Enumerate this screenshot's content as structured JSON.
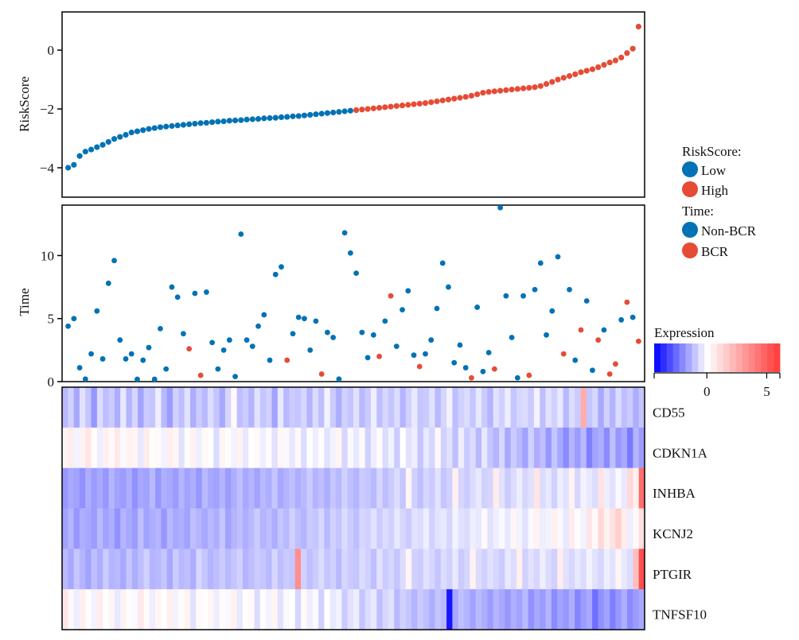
{
  "chart_data": {
    "type": "scatter",
    "panels": {
      "risk": {
        "ylabel": "RiskScore",
        "ylim": [
          -5,
          1.3
        ],
        "yticks": [
          0,
          -2,
          -4
        ]
      },
      "time": {
        "ylabel": "Time",
        "ylim": [
          0,
          14
        ],
        "yticks": [
          0,
          5,
          10
        ]
      },
      "heatmap": {
        "genes": [
          "CD55",
          "CDKN1A",
          "INHBA",
          "KCNJ2",
          "PTGIR",
          "TNFSF10"
        ]
      }
    },
    "legend": {
      "risk_title": "RiskScore:",
      "risk_low": "Low",
      "risk_high": "High",
      "time_title": "Time:",
      "time_nonbcr": "Non-BCR",
      "time_bcr": "BCR",
      "expression_title": "Expression",
      "expression_ticks": [
        0,
        5
      ],
      "expression_range": [
        -4.4,
        6.1
      ],
      "placement": "right"
    },
    "colors": {
      "low": "#0072b5",
      "high": "#e64b35",
      "heat_low": "#0000ff",
      "heat_mid": "#ffffff",
      "heat_high": "#ff3a3a"
    },
    "risk_score": [
      -4.0,
      -3.9,
      -3.6,
      -3.45,
      -3.38,
      -3.3,
      -3.22,
      -3.12,
      -3.02,
      -2.95,
      -2.88,
      -2.8,
      -2.76,
      -2.72,
      -2.68,
      -2.65,
      -2.62,
      -2.6,
      -2.58,
      -2.56,
      -2.54,
      -2.52,
      -2.5,
      -2.48,
      -2.47,
      -2.45,
      -2.43,
      -2.42,
      -2.4,
      -2.39,
      -2.38,
      -2.36,
      -2.35,
      -2.34,
      -2.32,
      -2.31,
      -2.3,
      -2.28,
      -2.27,
      -2.25,
      -2.24,
      -2.22,
      -2.2,
      -2.18,
      -2.16,
      -2.14,
      -2.12,
      -2.1,
      -2.08,
      -2.06,
      -2.04,
      -2.02,
      -2.0,
      -1.98,
      -1.96,
      -1.94,
      -1.92,
      -1.9,
      -1.88,
      -1.86,
      -1.84,
      -1.82,
      -1.8,
      -1.77,
      -1.74,
      -1.71,
      -1.68,
      -1.65,
      -1.62,
      -1.59,
      -1.55,
      -1.5,
      -1.45,
      -1.42,
      -1.4,
      -1.38,
      -1.36,
      -1.34,
      -1.32,
      -1.3,
      -1.28,
      -1.26,
      -1.22,
      -1.15,
      -1.08,
      -1.0,
      -0.94,
      -0.88,
      -0.82,
      -0.75,
      -0.7,
      -0.65,
      -0.58,
      -0.5,
      -0.42,
      -0.35,
      -0.25,
      -0.1,
      0.05,
      0.8
    ],
    "risk_high": [
      0,
      0,
      0,
      0,
      0,
      0,
      0,
      0,
      0,
      0,
      0,
      0,
      0,
      0,
      0,
      0,
      0,
      0,
      0,
      0,
      0,
      0,
      0,
      0,
      0,
      0,
      0,
      0,
      0,
      0,
      0,
      0,
      0,
      0,
      0,
      0,
      0,
      0,
      0,
      0,
      0,
      0,
      0,
      0,
      0,
      0,
      0,
      0,
      0,
      0,
      1,
      1,
      1,
      1,
      1,
      1,
      1,
      1,
      1,
      1,
      1,
      1,
      1,
      1,
      1,
      1,
      1,
      1,
      1,
      1,
      1,
      1,
      1,
      1,
      1,
      1,
      1,
      1,
      1,
      1,
      1,
      1,
      1,
      1,
      1,
      1,
      1,
      1,
      1,
      1,
      1,
      1,
      1,
      1,
      1,
      1,
      1,
      1,
      1,
      1
    ],
    "time": [
      4.4,
      5.0,
      1.1,
      0.2,
      2.2,
      5.6,
      1.8,
      7.8,
      9.6,
      3.3,
      1.8,
      2.2,
      0.1,
      1.7,
      2.7,
      0.1,
      4.2,
      1.0,
      7.5,
      6.7,
      3.8,
      2.6,
      7.0,
      0.5,
      7.1,
      3.1,
      1.0,
      2.5,
      3.3,
      0.4,
      11.7,
      3.3,
      2.8,
      4.4,
      5.3,
      1.7,
      8.5,
      9.1,
      1.7,
      3.8,
      5.1,
      5.0,
      2.5,
      4.8,
      0.6,
      3.9,
      3.5,
      0.2,
      11.8,
      10.2,
      8.6,
      3.9,
      1.9,
      3.7,
      2.0,
      4.8,
      6.8,
      2.8,
      5.7,
      7.2,
      2.1,
      1.2,
      2.2,
      3.3,
      5.8,
      9.4,
      7.5,
      1.5,
      2.9,
      1.1,
      0.3,
      5.9,
      0.8,
      2.3,
      1.0,
      13.8,
      6.8,
      3.5,
      0.3,
      6.8,
      0.5,
      7.3,
      9.4,
      3.7,
      5.6,
      9.9,
      2.2,
      7.3,
      1.7,
      4.1,
      6.4,
      0.9,
      3.3,
      4.1,
      0.6,
      1.4,
      4.9,
      6.3,
      5.1,
      3.2
    ],
    "bcr_status": [
      0,
      0,
      0,
      0,
      0,
      0,
      0,
      0,
      0,
      0,
      0,
      0,
      0,
      0,
      0,
      0,
      0,
      0,
      0,
      0,
      0,
      1,
      0,
      1,
      0,
      0,
      0,
      0,
      0,
      0,
      0,
      0,
      0,
      0,
      0,
      0,
      0,
      0,
      1,
      0,
      0,
      0,
      0,
      0,
      1,
      0,
      0,
      0,
      0,
      0,
      0,
      0,
      0,
      0,
      1,
      0,
      1,
      0,
      0,
      0,
      0,
      1,
      0,
      0,
      0,
      0,
      0,
      0,
      0,
      0,
      1,
      0,
      0,
      0,
      1,
      0,
      0,
      0,
      0,
      0,
      1,
      0,
      0,
      0,
      0,
      0,
      1,
      0,
      0,
      1,
      0,
      0,
      1,
      0,
      1,
      1,
      0,
      1,
      0,
      1
    ],
    "expression": [
      [
        -1.2,
        -0.8,
        -1.5,
        -0.5,
        -1.0,
        -1.8,
        -0.6,
        -1.1,
        -0.9,
        -1.4,
        -0.4,
        -1.3,
        -0.7,
        -1.6,
        -0.9,
        -1.0,
        -0.3,
        -1.2,
        -1.7,
        -0.8,
        -1.1,
        -0.5,
        -1.4,
        -0.9,
        -1.2,
        -0.6,
        -1.0,
        -1.5,
        -0.7,
        0.2,
        -1.1,
        -0.9,
        -1.3,
        -0.5,
        -1.0,
        -0.8,
        -1.6,
        -0.4,
        -1.2,
        -0.9,
        -1.0,
        -0.7,
        -1.3,
        -0.6,
        -1.1,
        -0.2,
        -0.9,
        -1.4,
        -0.8,
        -1.0,
        -0.5,
        -1.2,
        -0.9,
        -0.3,
        -1.1,
        -0.7,
        -1.0,
        -0.6,
        -1.3,
        -0.8,
        -0.4,
        -1.0,
        -0.9,
        -0.5,
        -1.2,
        -0.7,
        -0.2,
        -1.1,
        -0.8,
        -0.6,
        -1.0,
        -0.4,
        -0.9,
        -1.3,
        -0.5,
        -0.8,
        -0.3,
        -1.0,
        -0.7,
        -0.6,
        -0.9,
        -0.2,
        -1.1,
        -0.5,
        -0.8,
        -0.4,
        -1.2,
        -0.6,
        -0.9,
        2.5,
        -1.0,
        -0.7,
        -1.5,
        -0.8,
        -1.3,
        -0.6,
        -1.1,
        -0.9,
        -1.4,
        -1.0
      ],
      [
        0.3,
        0.6,
        -0.2,
        0.4,
        0.8,
        0.1,
        -0.3,
        0.5,
        0.2,
        0.7,
        -0.1,
        0.4,
        0.3,
        -0.4,
        0.6,
        0.1,
        0.2,
        -0.2,
        0.5,
        0.3,
        -0.5,
        0.1,
        0.4,
        -0.3,
        0.2,
        0.0,
        -0.6,
        0.3,
        0.1,
        -0.2,
        0.4,
        -0.4,
        0.0,
        0.2,
        -0.3,
        0.1,
        -0.5,
        0.3,
        -0.1,
        -0.4,
        0.2,
        -0.6,
        0.0,
        -0.3,
        0.1,
        -0.5,
        -0.2,
        0.3,
        -0.7,
        -0.1,
        -0.4,
        0.2,
        -0.8,
        -0.3,
        0.1,
        -0.6,
        -0.2,
        -0.9,
        0.0,
        -0.5,
        -0.3,
        -1.0,
        -0.4,
        -0.7,
        0.2,
        -0.8,
        -0.5,
        -1.1,
        -0.3,
        -0.9,
        -0.6,
        -1.2,
        -0.4,
        -1.0,
        -1.3,
        -0.7,
        -1.5,
        -0.9,
        -1.2,
        -1.6,
        -0.8,
        -1.4,
        -1.1,
        -1.8,
        -1.0,
        -1.5,
        -2.0,
        -1.3,
        -1.7,
        -1.2,
        -2.2,
        -1.6,
        -1.4,
        -2.0,
        -1.1,
        -1.8,
        -1.5,
        -2.3,
        -1.3,
        -1.7
      ],
      [
        -1.8,
        -1.5,
        -1.6,
        -1.9,
        -1.4,
        -1.7,
        -1.5,
        -1.8,
        -1.3,
        -1.6,
        -1.7,
        -1.4,
        -1.9,
        -1.5,
        -1.6,
        -1.2,
        -1.8,
        -1.4,
        -1.5,
        -1.7,
        -1.3,
        -1.6,
        -1.4,
        -1.8,
        -1.2,
        -1.5,
        -1.6,
        -1.3,
        -1.7,
        -1.4,
        -1.1,
        -1.5,
        -1.3,
        -1.6,
        -1.2,
        -1.4,
        -1.0,
        -1.5,
        -1.3,
        -1.1,
        -1.4,
        -1.2,
        -0.9,
        -1.3,
        -1.1,
        -1.4,
        -1.0,
        -1.2,
        -0.8,
        -1.1,
        -1.3,
        -0.9,
        -1.0,
        -1.2,
        -0.7,
        -1.1,
        -0.9,
        -0.6,
        -1.0,
        0.3,
        -0.8,
        -1.1,
        -0.7,
        -0.9,
        -0.5,
        -1.0,
        -0.8,
        0.5,
        -0.7,
        -0.9,
        -0.6,
        -0.4,
        -0.8,
        -0.7,
        0.6,
        -0.5,
        -0.9,
        -0.6,
        -0.3,
        -0.7,
        -0.5,
        0.8,
        -0.6,
        -0.4,
        -0.8,
        -0.3,
        -0.5,
        0.4,
        -0.7,
        -0.2,
        -0.4,
        -0.6,
        0.9,
        -0.3,
        -0.5,
        -0.1,
        -0.4,
        1.2,
        0.5,
        4.5
      ],
      [
        -1.6,
        -1.3,
        -1.8,
        -1.4,
        -1.5,
        -1.7,
        -1.2,
        -1.6,
        -1.4,
        -1.9,
        -1.3,
        -1.5,
        -1.7,
        -1.1,
        -1.6,
        -1.4,
        -1.3,
        -1.8,
        -1.2,
        -1.5,
        -1.4,
        -1.6,
        -1.1,
        -1.3,
        -1.5,
        -1.2,
        -1.4,
        -1.0,
        -1.6,
        -1.3,
        -1.1,
        -1.4,
        -1.2,
        -0.9,
        -1.3,
        -1.1,
        -1.4,
        -1.0,
        -1.2,
        -0.8,
        -1.1,
        -1.3,
        -0.9,
        -1.0,
        -0.7,
        -1.2,
        -0.8,
        -1.0,
        -0.6,
        -0.9,
        -1.1,
        -0.7,
        -0.8,
        -0.5,
        -0.9,
        -0.6,
        -0.8,
        -0.4,
        -0.7,
        -0.9,
        -0.5,
        -0.6,
        -0.3,
        -0.8,
        -0.5,
        -0.4,
        -0.7,
        -0.2,
        -0.5,
        -0.6,
        -0.3,
        -0.4,
        0.2,
        -0.5,
        -0.3,
        -0.1,
        -0.4,
        0.3,
        -0.2,
        -0.5,
        -0.1,
        0.4,
        -0.3,
        -0.2,
        0.5,
        -0.1,
        -0.4,
        0.6,
        0.1,
        -0.2,
        0.8,
        0.2,
        1.2,
        0.4,
        0.9,
        1.5,
        0.6,
        -0.3,
        0.2,
        1.0
      ],
      [
        -1.2,
        -1.5,
        -1.0,
        -1.3,
        -1.6,
        -1.1,
        -1.4,
        -0.9,
        -1.3,
        -1.2,
        -1.5,
        -1.0,
        -1.4,
        -1.1,
        -0.8,
        -1.3,
        -1.2,
        -1.0,
        -1.5,
        -0.9,
        -1.2,
        -1.1,
        -1.4,
        -0.7,
        -1.0,
        -1.3,
        -1.1,
        -0.9,
        -1.2,
        -1.0,
        -0.8,
        -1.3,
        -1.1,
        -0.9,
        -1.0,
        -1.2,
        -0.7,
        -1.1,
        -0.9,
        -1.0,
        3.5,
        -0.8,
        -1.1,
        -0.9,
        -0.6,
        -1.0,
        -0.8,
        -1.2,
        -0.7,
        -0.9,
        -1.0,
        -0.6,
        -0.8,
        -1.1,
        -0.5,
        -0.9,
        -0.7,
        -1.0,
        -0.6,
        0.3,
        -0.8,
        -0.9,
        -0.5,
        -0.7,
        -1.0,
        -0.6,
        -0.8,
        -0.4,
        -0.9,
        -0.7,
        0.4,
        -0.6,
        -0.8,
        -0.5,
        -0.7,
        -0.9,
        -0.4,
        -0.6,
        0.5,
        -0.8,
        -0.5,
        -0.7,
        -0.3,
        -0.6,
        -0.8,
        0.6,
        -0.5,
        -0.7,
        -0.4,
        -0.6,
        -0.2,
        -0.5,
        -0.7,
        -0.3,
        -0.5,
        0.3,
        -0.4,
        -0.6,
        2.0,
        5.5
      ],
      [
        0.8,
        0.2,
        -0.3,
        0.5,
        0.1,
        -0.2,
        0.6,
        0.0,
        0.3,
        -0.4,
        0.4,
        0.1,
        -0.1,
        0.7,
        0.2,
        -0.3,
        0.3,
        0.0,
        0.5,
        -0.2,
        0.1,
        0.4,
        -0.5,
        0.2,
        0.0,
        0.3,
        -0.3,
        0.1,
        -0.1,
        0.4,
        -0.4,
        0.0,
        0.2,
        -0.6,
        0.1,
        -0.2,
        0.3,
        -0.5,
        -0.1,
        0.0,
        -0.7,
        0.2,
        -0.3,
        -0.1,
        -0.8,
        0.0,
        -0.4,
        -0.2,
        -0.9,
        -0.5,
        -0.3,
        -1.0,
        -0.6,
        -0.4,
        -1.1,
        -0.7,
        -0.5,
        -1.2,
        -0.8,
        -1.0,
        -1.3,
        -0.9,
        -1.1,
        -1.4,
        -1.0,
        -1.2,
        -4.0,
        -1.5,
        -1.1,
        -1.3,
        -1.6,
        -1.2,
        -1.4,
        -1.7,
        -1.3,
        -1.5,
        -1.8,
        -1.4,
        -1.6,
        -1.2,
        -1.9,
        -1.5,
        -1.7,
        -1.3,
        -2.0,
        -1.6,
        -1.8,
        -1.4,
        -2.1,
        -1.7,
        -1.5,
        -2.5,
        -1.9,
        -1.6,
        -2.2,
        -1.8,
        -1.4,
        -2.0,
        -1.7,
        -1.5
      ]
    ]
  }
}
